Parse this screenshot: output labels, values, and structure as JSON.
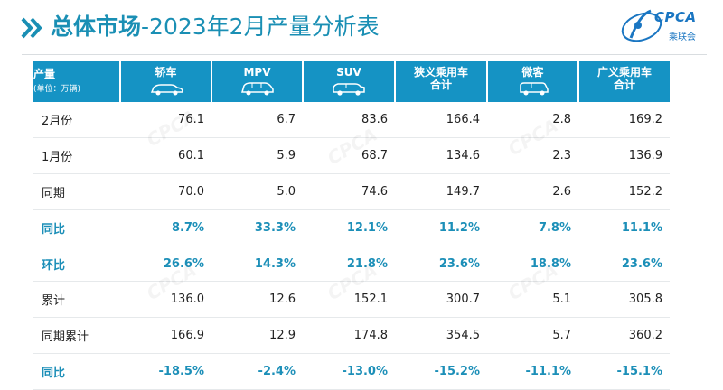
{
  "header": {
    "title_bold": "总体市场",
    "title_rest": "-2023年2月产量分析表",
    "logo_text": "CPCA",
    "logo_sub": "乘联会",
    "accent_color": "#1593c4"
  },
  "table": {
    "corner_label": "产量",
    "corner_unit": "(单位：万辆)",
    "columns": [
      {
        "label": "轿车",
        "icon": "sedan-car-icon"
      },
      {
        "label": "MPV",
        "icon": "mpv-car-icon"
      },
      {
        "label": "SUV",
        "icon": "suv-car-icon"
      },
      {
        "label": "狭义乘用车\n合计",
        "icon": ""
      },
      {
        "label": "微客",
        "icon": "microvan-car-icon"
      },
      {
        "label": "广义乘用车\n合计",
        "icon": ""
      }
    ],
    "rows": [
      {
        "label": "2月份",
        "values": [
          "76.1",
          "6.7",
          "83.6",
          "166.4",
          "2.8",
          "169.2"
        ],
        "pct": false
      },
      {
        "label": "1月份",
        "values": [
          "60.1",
          "5.9",
          "68.7",
          "134.6",
          "2.3",
          "136.9"
        ],
        "pct": false
      },
      {
        "label": "同期",
        "values": [
          "70.0",
          "5.0",
          "74.6",
          "149.7",
          "2.6",
          "152.2"
        ],
        "pct": false
      },
      {
        "label": "同比",
        "values": [
          "8.7%",
          "33.3%",
          "12.1%",
          "11.2%",
          "7.8%",
          "11.1%"
        ],
        "pct": true
      },
      {
        "label": "环比",
        "values": [
          "26.6%",
          "14.3%",
          "21.8%",
          "23.6%",
          "18.8%",
          "23.6%"
        ],
        "pct": true
      },
      {
        "label": "累计",
        "values": [
          "136.0",
          "12.6",
          "152.1",
          "300.7",
          "5.1",
          "305.8"
        ],
        "pct": false
      },
      {
        "label": "同期累计",
        "values": [
          "166.9",
          "12.9",
          "174.8",
          "354.5",
          "5.7",
          "360.2"
        ],
        "pct": false
      },
      {
        "label": "同比",
        "values": [
          "-18.5%",
          "-2.4%",
          "-13.0%",
          "-15.2%",
          "-11.1%",
          "-15.1%"
        ],
        "pct": true
      }
    ]
  }
}
